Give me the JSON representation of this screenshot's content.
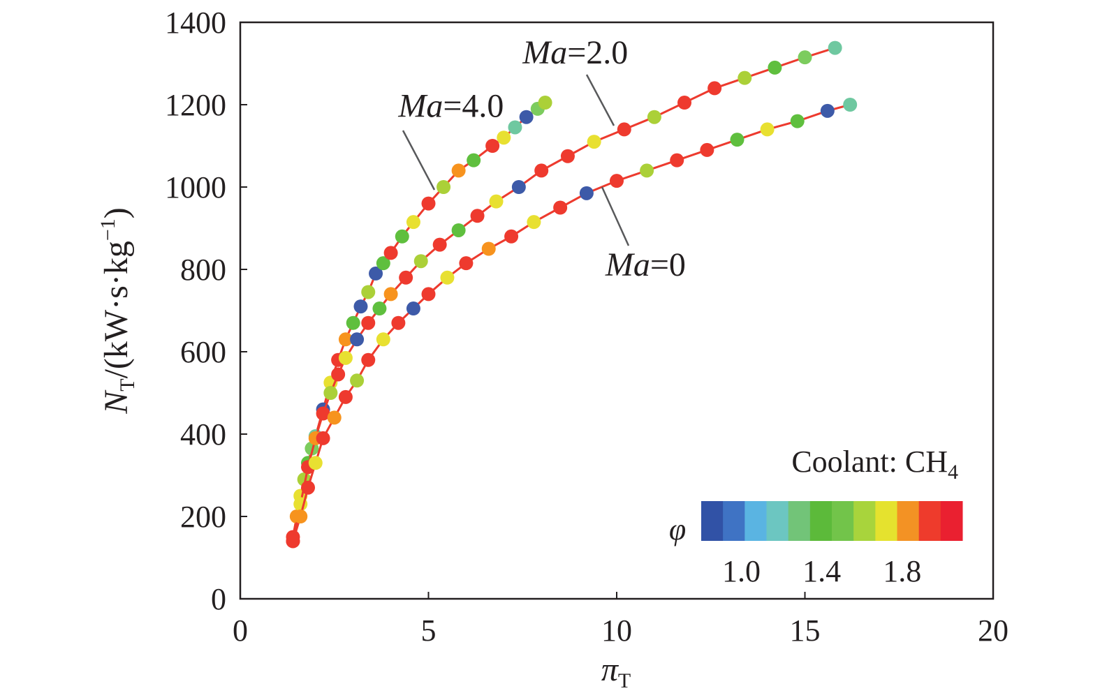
{
  "chart_data": {
    "type": "scatter",
    "xlabel": "π",
    "xlabel_sub": "T",
    "ylabel_parts": {
      "main": "N",
      "sub": "T",
      "unit_open": "/(kW·s·kg",
      "unit_sup": "−1",
      "unit_close": ")"
    },
    "xlim": [
      0,
      20
    ],
    "ylim": [
      0,
      1400
    ],
    "x_ticks": [
      {
        "value": 0,
        "label": "0"
      },
      {
        "value": 5,
        "label": "5"
      },
      {
        "value": 10,
        "label": "10"
      },
      {
        "value": 15,
        "label": "15"
      },
      {
        "value": 20,
        "label": "20"
      }
    ],
    "y_ticks": [
      {
        "value": 0,
        "label": "0"
      },
      {
        "value": 200,
        "label": "200"
      },
      {
        "value": 400,
        "label": "400"
      },
      {
        "value": 600,
        "label": "600"
      },
      {
        "value": 800,
        "label": "800"
      },
      {
        "value": 1000,
        "label": "1000"
      },
      {
        "value": 1200,
        "label": "1200"
      },
      {
        "value": 1400,
        "label": "1400"
      }
    ],
    "grid": false,
    "series": [
      {
        "name": "Ma=4.0",
        "annotation": {
          "italic": "Ma",
          "rest": "=4.0",
          "label_x": 4.2,
          "label_y": 1170,
          "point_x": 5.2,
          "point_y": 985
        },
        "x": [
          1.4,
          1.5,
          1.6,
          1.7,
          1.8,
          1.9,
          2.0,
          2.2,
          2.4,
          2.6,
          2.8,
          3.0,
          3.2,
          3.4,
          3.6,
          3.8,
          4.0,
          4.3,
          4.6,
          5.0,
          5.4,
          5.8,
          6.2,
          6.7,
          7.0,
          7.3,
          7.6,
          7.9,
          8.1
        ],
        "y": [
          150,
          200,
          250,
          290,
          330,
          365,
          395,
          460,
          525,
          580,
          630,
          670,
          710,
          745,
          790,
          815,
          840,
          880,
          915,
          960,
          1000,
          1040,
          1065,
          1100,
          1120,
          1145,
          1170,
          1190,
          1205
        ],
        "colors": [
          "#ee3a2e",
          "#f7931e",
          "#e8e031",
          "#abd038",
          "#5fbf3e",
          "#7ccc5e",
          "#6fc8a0",
          "#3d5aa8",
          "#e8e031",
          "#ee3a2e",
          "#f7931e",
          "#5fbf3e",
          "#3d5aa8",
          "#abd038",
          "#3d5aa8",
          "#5fbf3e",
          "#ee3a2e",
          "#5fbf3e",
          "#e8e031",
          "#ee3a2e",
          "#abd038",
          "#f7931e",
          "#5fbf3e",
          "#ee3a2e",
          "#e8e031",
          "#6fc8a0",
          "#3d5aa8",
          "#7ccc5e",
          "#abd038"
        ]
      },
      {
        "name": "Ma=2.0",
        "annotation": {
          "italic": "Ma",
          "rest": "=2.0",
          "label_x": 7.5,
          "label_y": 1300,
          "point_x": 10.0,
          "point_y": 1148
        },
        "x": [
          1.4,
          1.6,
          1.8,
          2.0,
          2.2,
          2.4,
          2.6,
          2.8,
          3.1,
          3.4,
          3.7,
          4.0,
          4.4,
          4.8,
          5.3,
          5.8,
          6.3,
          6.8,
          7.4,
          8.0,
          8.7,
          9.4,
          10.2,
          11.0,
          11.8,
          12.6,
          13.4,
          14.2,
          15.0,
          15.8
        ],
        "y": [
          140,
          230,
          320,
          390,
          450,
          500,
          545,
          585,
          630,
          670,
          705,
          740,
          780,
          820,
          860,
          895,
          930,
          965,
          1000,
          1040,
          1075,
          1110,
          1140,
          1170,
          1205,
          1240,
          1265,
          1290,
          1315,
          1338
        ],
        "colors": [
          "#ee3a2e",
          "#e8e031",
          "#ee3a2e",
          "#f7931e",
          "#ee3a2e",
          "#abd038",
          "#ee3a2e",
          "#e8e031",
          "#3d5aa8",
          "#ee3a2e",
          "#5fbf3e",
          "#f7931e",
          "#ee3a2e",
          "#abd038",
          "#ee3a2e",
          "#5fbf3e",
          "#ee3a2e",
          "#e8e031",
          "#3d5aa8",
          "#ee3a2e",
          "#ee3a2e",
          "#e8e031",
          "#ee3a2e",
          "#abd038",
          "#ee3a2e",
          "#ee3a2e",
          "#abd038",
          "#5fbf3e",
          "#7ccc5e",
          "#6fc8a0"
        ]
      },
      {
        "name": "Ma=0",
        "annotation": {
          "italic": "Ma",
          "rest": "=0",
          "label_x": 9.7,
          "label_y": 785,
          "point_x": 9.6,
          "point_y": 992
        },
        "x": [
          1.4,
          1.6,
          1.8,
          2.0,
          2.2,
          2.5,
          2.8,
          3.1,
          3.4,
          3.8,
          4.2,
          4.6,
          5.0,
          5.5,
          6.0,
          6.6,
          7.2,
          7.8,
          8.5,
          9.2,
          10.0,
          10.8,
          11.6,
          12.4,
          13.2,
          14.0,
          14.8,
          15.6,
          16.2
        ],
        "y": [
          140,
          200,
          270,
          330,
          390,
          440,
          490,
          530,
          580,
          630,
          670,
          705,
          740,
          780,
          815,
          850,
          880,
          915,
          950,
          985,
          1015,
          1040,
          1065,
          1090,
          1115,
          1140,
          1160,
          1185,
          1200
        ],
        "colors": [
          "#ee3a2e",
          "#f7931e",
          "#ee3a2e",
          "#e8e031",
          "#ee3a2e",
          "#f7931e",
          "#ee3a2e",
          "#abd038",
          "#ee3a2e",
          "#e8e031",
          "#ee3a2e",
          "#3d5aa8",
          "#ee3a2e",
          "#e8e031",
          "#ee3a2e",
          "#f7931e",
          "#ee3a2e",
          "#e8e031",
          "#ee3a2e",
          "#3d5aa8",
          "#ee3a2e",
          "#abd038",
          "#ee3a2e",
          "#ee3a2e",
          "#5fbf3e",
          "#e8e031",
          "#5fbf3e",
          "#3d5aa8",
          "#6fc8a0"
        ]
      }
    ],
    "legend": {
      "title": "Coolant: CH",
      "title_sub": "4",
      "colorbar_label": "φ",
      "colorbar_min": 0.8,
      "colorbar_max": 2.1,
      "colorbar_colors": [
        "#3152a6",
        "#3f73c4",
        "#5ab4e2",
        "#6cc6c1",
        "#72c478",
        "#5cba3a",
        "#72c44a",
        "#a8d43c",
        "#e5e22e",
        "#f39224",
        "#ee3b2c",
        "#ea2030"
      ],
      "ticks": [
        {
          "value": 1.0,
          "label": "1.0"
        },
        {
          "value": 1.4,
          "label": "1.4"
        },
        {
          "value": 1.8,
          "label": "1.8"
        }
      ],
      "placement": "bottom-right"
    }
  }
}
